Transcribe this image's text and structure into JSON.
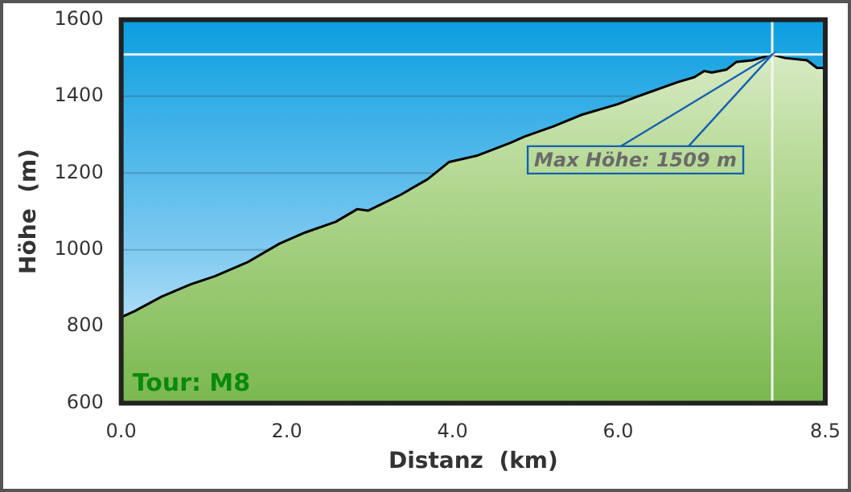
{
  "chart_data": {
    "type": "area",
    "xlabel": "Distanz  (km)",
    "ylabel": "Höhe  (m)",
    "x": [
      0,
      0.16,
      0.49,
      0.84,
      1.13,
      1.52,
      1.91,
      2.22,
      2.59,
      2.85,
      2.98,
      3.37,
      3.7,
      3.96,
      4.29,
      4.7,
      4.87,
      5.22,
      5.56,
      6.0,
      6.2,
      6.72,
      6.92,
      7.04,
      7.13,
      7.31,
      7.43,
      7.62,
      7.86,
      8.01,
      8.28,
      8.4,
      8.5
    ],
    "series": [
      {
        "color": "#000000",
        "values": [
          824,
          840,
          878,
          910,
          931,
          967,
          1016,
          1045,
          1073,
          1106,
          1102,
          1143,
          1184,
          1229,
          1245,
          1279,
          1295,
          1322,
          1352,
          1380,
          1397,
          1437,
          1450,
          1466,
          1462,
          1470,
          1490,
          1494,
          1509,
          1500,
          1494,
          1474,
          1474
        ]
      }
    ],
    "xlim": [
      0,
      8.5
    ],
    "ylim": [
      600,
      1600
    ],
    "xticks": [
      {
        "value": 0,
        "label": "0.0"
      },
      {
        "value": 2,
        "label": "2.0"
      },
      {
        "value": 4,
        "label": "4.0"
      },
      {
        "value": 6,
        "label": "6.0"
      },
      {
        "value": 8.5,
        "label": "8.5"
      }
    ],
    "yticks": [
      600,
      800,
      1000,
      1200,
      1400,
      1600
    ],
    "grid": "y",
    "legend": false,
    "ref_lines": [
      {
        "axis": "y",
        "value": 1509,
        "color": "#e8f4fb"
      },
      {
        "axis": "x",
        "value": 7.86,
        "color": "#f4f8ee"
      }
    ],
    "annotations": [
      "Tour: M8",
      "Max Höhe: 1509 m"
    ]
  }
}
